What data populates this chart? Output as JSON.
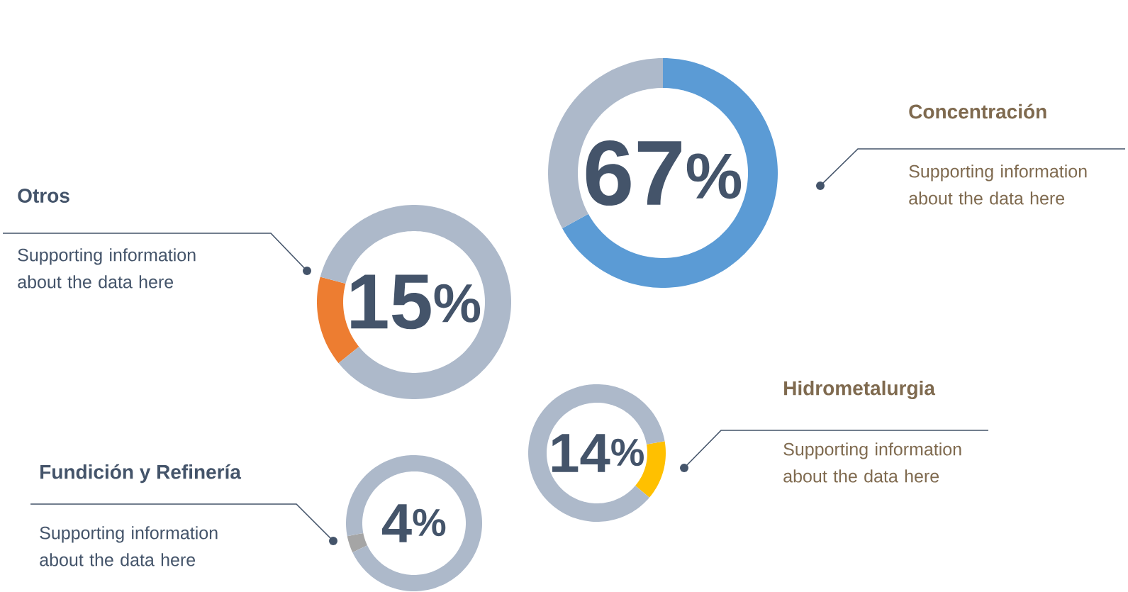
{
  "chart_data": [
    {
      "type": "donut",
      "title": "Concentración",
      "categories": [
        null,
        null
      ],
      "values": [
        67,
        33
      ],
      "colors": [
        "#5b9bd5",
        "#adb9ca"
      ],
      "value_labels": [
        "67$^{%}$",
        null
      ],
      "annotations": [
        "Supporting information about the data here"
      ]
    },
    {
      "type": "donut",
      "title": "Otros",
      "categories": [
        null,
        null
      ],
      "values": [
        15,
        85
      ],
      "colors": [
        "#ed7d31",
        "#adb9ca"
      ],
      "value_labels": [
        "15$^{%}$",
        null
      ],
      "annotations": [
        "Supporting information about the data here"
      ]
    },
    {
      "type": "donut",
      "title": "Hidrometalurgia",
      "categories": [
        null,
        null
      ],
      "values": [
        14,
        86
      ],
      "colors": [
        "#ffc000",
        "#adb9ca"
      ],
      "value_labels": [
        "14$^{%}$",
        null
      ],
      "annotations": [
        "Supporting information about the data here"
      ]
    },
    {
      "type": "donut",
      "title": "Fundición y Refinería",
      "categories": [
        null,
        null
      ],
      "values": [
        4,
        96
      ],
      "colors": [
        "#a5a5a5",
        "#adb9ca"
      ],
      "value_labels": [
        "4$^{%}$",
        null
      ],
      "annotations": [
        "Supporting information about the data here"
      ]
    }
  ]
}
